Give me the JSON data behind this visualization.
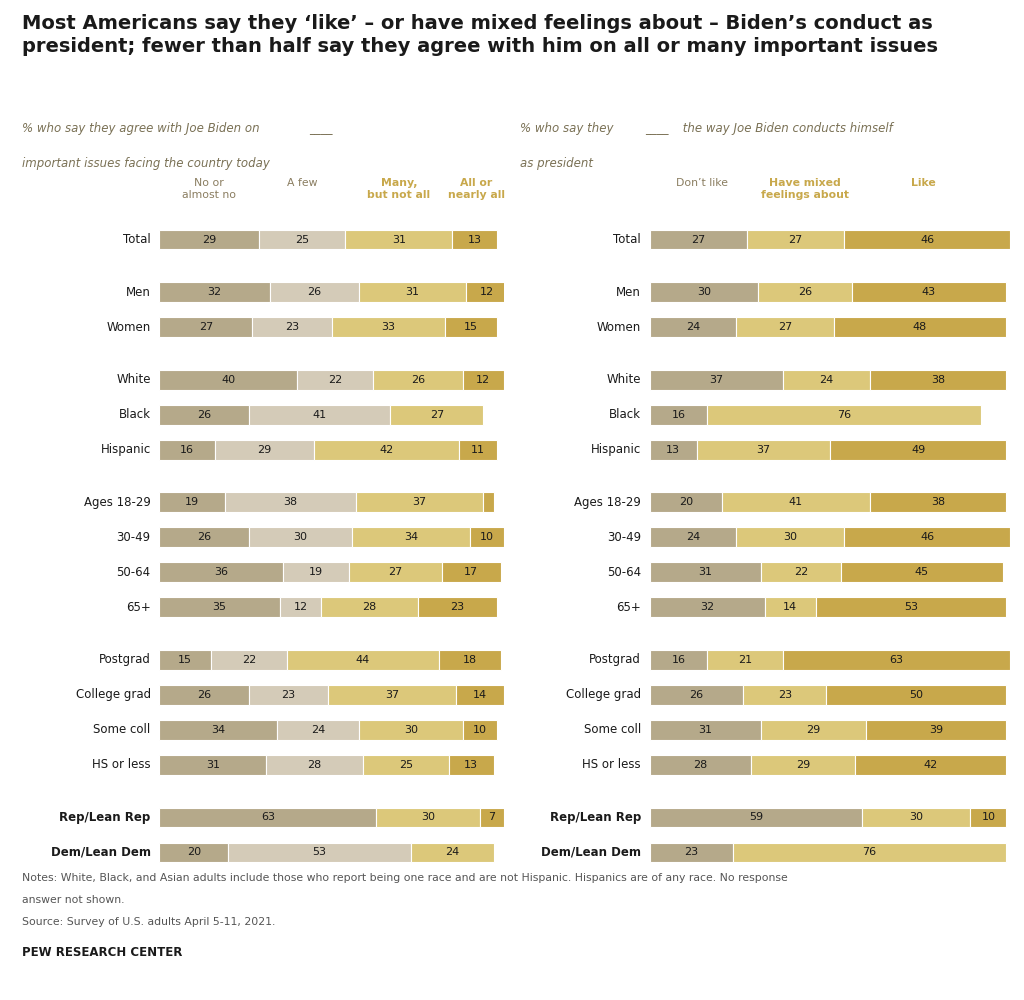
{
  "title": "Most Americans say they ‘like’ – or have mixed feelings about – Biden’s conduct as\npresident; fewer than half say they agree with him on all or many important issues",
  "left_subtitle1": "% who say they agree with Joe Biden on ",
  "left_subtitle_blank": "____",
  "left_subtitle2": "important issues facing the country today",
  "right_subtitle1": "% who say they ",
  "right_subtitle_blank": "____",
  "right_subtitle2": " the way Joe Biden conducts himself",
  "right_subtitle3": "as president",
  "left_col_headers": [
    "No or\nalmost no",
    "A few",
    "Many,\nbut not all",
    "All or\nnearly all"
  ],
  "right_col_headers": [
    "Don’t like",
    "Have mixed\nfeelings about",
    "Like"
  ],
  "left_header_text_colors": [
    "#8a7d60",
    "#8a7d60",
    "#c8a84b",
    "#c8a84b"
  ],
  "right_header_text_colors": [
    "#8a7d60",
    "#c8a84b",
    "#c8a84b"
  ],
  "left_colors": [
    "#b5a98a",
    "#d4cbb8",
    "#dcc87a",
    "#c8a84b"
  ],
  "right_colors": [
    "#b5a98a",
    "#dcc87a",
    "#c8a84b"
  ],
  "rows_left": [
    {
      "label": "Total",
      "values": [
        29,
        25,
        31,
        13
      ],
      "bold": false,
      "gap": false
    },
    {
      "label": "",
      "values": null,
      "bold": false,
      "gap": true
    },
    {
      "label": "Men",
      "values": [
        32,
        26,
        31,
        12
      ],
      "bold": false,
      "gap": false
    },
    {
      "label": "Women",
      "values": [
        27,
        23,
        33,
        15
      ],
      "bold": false,
      "gap": false
    },
    {
      "label": "",
      "values": null,
      "bold": false,
      "gap": true
    },
    {
      "label": "White",
      "values": [
        40,
        22,
        26,
        12
      ],
      "bold": false,
      "gap": false
    },
    {
      "label": "Black",
      "values": [
        26,
        41,
        27,
        0
      ],
      "bold": false,
      "gap": false
    },
    {
      "label": "Hispanic",
      "values": [
        16,
        29,
        42,
        11
      ],
      "bold": false,
      "gap": false
    },
    {
      "label": "",
      "values": null,
      "bold": false,
      "gap": true
    },
    {
      "label": "Ages 18-29",
      "values": [
        19,
        38,
        37,
        3
      ],
      "bold": false,
      "gap": false
    },
    {
      "label": "30-49",
      "values": [
        26,
        30,
        34,
        10
      ],
      "bold": false,
      "gap": false
    },
    {
      "label": "50-64",
      "values": [
        36,
        19,
        27,
        17
      ],
      "bold": false,
      "gap": false
    },
    {
      "label": "65+",
      "values": [
        35,
        12,
        28,
        23
      ],
      "bold": false,
      "gap": false
    },
    {
      "label": "",
      "values": null,
      "bold": false,
      "gap": true
    },
    {
      "label": "Postgrad",
      "values": [
        15,
        22,
        44,
        18
      ],
      "bold": false,
      "gap": false
    },
    {
      "label": "College grad",
      "values": [
        26,
        23,
        37,
        14
      ],
      "bold": false,
      "gap": false
    },
    {
      "label": "Some coll",
      "values": [
        34,
        24,
        30,
        10
      ],
      "bold": false,
      "gap": false
    },
    {
      "label": "HS or less",
      "values": [
        31,
        28,
        25,
        13
      ],
      "bold": false,
      "gap": false
    },
    {
      "label": "",
      "values": null,
      "bold": false,
      "gap": true
    },
    {
      "label": "Rep/Lean Rep",
      "values": [
        63,
        0,
        30,
        7
      ],
      "bold": true,
      "gap": false
    },
    {
      "label": "Dem/Lean Dem",
      "values": [
        20,
        53,
        24,
        0
      ],
      "bold": true,
      "gap": false
    }
  ],
  "rows_right": [
    {
      "label": "Total",
      "values": [
        27,
        27,
        46
      ],
      "bold": false,
      "gap": false
    },
    {
      "label": "",
      "values": null,
      "bold": false,
      "gap": true
    },
    {
      "label": "Men",
      "values": [
        30,
        26,
        43
      ],
      "bold": false,
      "gap": false
    },
    {
      "label": "Women",
      "values": [
        24,
        27,
        48
      ],
      "bold": false,
      "gap": false
    },
    {
      "label": "",
      "values": null,
      "bold": false,
      "gap": true
    },
    {
      "label": "White",
      "values": [
        37,
        24,
        38
      ],
      "bold": false,
      "gap": false
    },
    {
      "label": "Black",
      "values": [
        16,
        76,
        0
      ],
      "bold": false,
      "gap": false
    },
    {
      "label": "Hispanic",
      "values": [
        13,
        37,
        49
      ],
      "bold": false,
      "gap": false
    },
    {
      "label": "",
      "values": null,
      "bold": false,
      "gap": true
    },
    {
      "label": "Ages 18-29",
      "values": [
        20,
        41,
        38
      ],
      "bold": false,
      "gap": false
    },
    {
      "label": "30-49",
      "values": [
        24,
        30,
        46
      ],
      "bold": false,
      "gap": false
    },
    {
      "label": "50-64",
      "values": [
        31,
        22,
        45
      ],
      "bold": false,
      "gap": false
    },
    {
      "label": "65+",
      "values": [
        32,
        14,
        53
      ],
      "bold": false,
      "gap": false
    },
    {
      "label": "",
      "values": null,
      "bold": false,
      "gap": true
    },
    {
      "label": "Postgrad",
      "values": [
        16,
        21,
        63
      ],
      "bold": false,
      "gap": false
    },
    {
      "label": "College grad",
      "values": [
        26,
        23,
        50
      ],
      "bold": false,
      "gap": false
    },
    {
      "label": "Some coll",
      "values": [
        31,
        29,
        39
      ],
      "bold": false,
      "gap": false
    },
    {
      "label": "HS or less",
      "values": [
        28,
        29,
        42
      ],
      "bold": false,
      "gap": false
    },
    {
      "label": "",
      "values": null,
      "bold": false,
      "gap": true
    },
    {
      "label": "Rep/Lean Rep",
      "values": [
        59,
        30,
        10
      ],
      "bold": true,
      "gap": false
    },
    {
      "label": "Dem/Lean Dem",
      "values": [
        23,
        76,
        0
      ],
      "bold": true,
      "gap": false
    }
  ],
  "notes_line1": "Notes: White, Black, and Asian adults include those who report being one race and are not Hispanic. Hispanics are of any race. No response",
  "notes_line2": "answer not shown.",
  "notes_line3": "Source: Survey of U.S. adults April 5-11, 2021.",
  "source_bold": "PEW RESEARCH CENTER",
  "bg_color": "#ffffff"
}
